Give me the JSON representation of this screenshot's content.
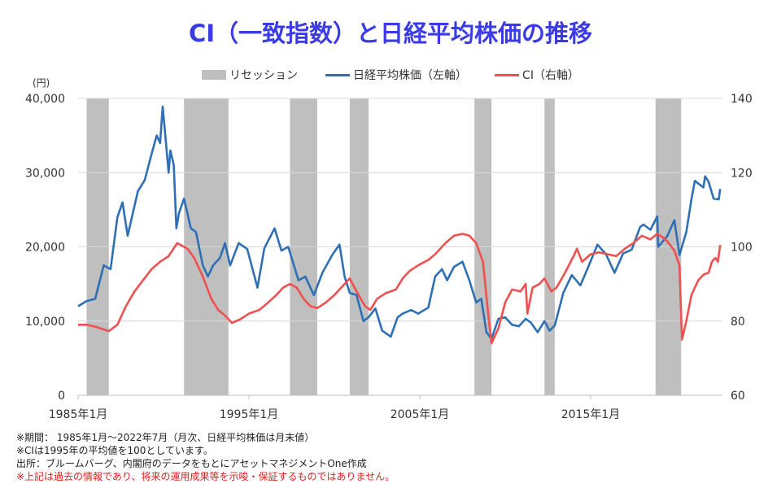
{
  "title": "CI（一致指数）と日経平均株価の推移",
  "colors": {
    "title": "#3a3ae6",
    "nikkei": "#2e6fb5",
    "ci": "#f05050",
    "recession": "#bfbfbf"
  },
  "notes": [
    "※期間： 1985年1月～2022年7月（月次、日経平均株価は月末値）",
    "※CIは1995年の平均値を100としています。",
    "出所：ブルームバーグ、内閣府のデータをもとにアセットマネジメントOne作成",
    "※上記は過去の情報であり、将来の運用成果等を示唆・保証するものではありません。"
  ],
  "chart_data": {
    "type": "line",
    "title": "CI（一致指数）と日経平均株価の推移",
    "legend": [
      "リセッション",
      "日経平均株価（左軸）",
      "CI（右軸）"
    ],
    "legend_position": "top",
    "y_left_label": "(円)",
    "y_left_lim": [
      0,
      40000
    ],
    "y_left_ticks": [
      "0",
      "10,000",
      "20,000",
      "30,000",
      "40,000"
    ],
    "y_right_lim": [
      60,
      140
    ],
    "y_right_ticks": [
      "60",
      "80",
      "100",
      "120",
      "140"
    ],
    "x_lim": [
      1985.0,
      2022.6
    ],
    "x_ticks": [
      {
        "v": 1985,
        "label": "1985年1月"
      },
      {
        "v": 1995,
        "label": "1995年1月"
      },
      {
        "v": 2005,
        "label": "2005年1月"
      },
      {
        "v": 2015,
        "label": "2015年1月"
      }
    ],
    "grid": true,
    "recessions": [
      [
        1985.5,
        1986.8
      ],
      [
        1991.2,
        1993.8
      ],
      [
        1997.4,
        1999.0
      ],
      [
        2000.9,
        2002.0
      ],
      [
        2008.2,
        2009.2
      ],
      [
        2012.3,
        2012.9
      ],
      [
        2018.8,
        2020.3
      ]
    ],
    "series": [
      {
        "name": "日経平均株価（左軸）",
        "axis": "left",
        "points": [
          [
            1985.0,
            12000
          ],
          [
            1985.5,
            12700
          ],
          [
            1986.0,
            13000
          ],
          [
            1986.5,
            17500
          ],
          [
            1986.9,
            17000
          ],
          [
            1987.3,
            24000
          ],
          [
            1987.6,
            26000
          ],
          [
            1987.9,
            21500
          ],
          [
            1988.2,
            24500
          ],
          [
            1988.5,
            27500
          ],
          [
            1988.9,
            29000
          ],
          [
            1989.3,
            32500
          ],
          [
            1989.6,
            35000
          ],
          [
            1989.8,
            34000
          ],
          [
            1989.95,
            38900
          ],
          [
            1990.3,
            30000
          ],
          [
            1990.4,
            33000
          ],
          [
            1990.6,
            31000
          ],
          [
            1990.75,
            22500
          ],
          [
            1990.9,
            24500
          ],
          [
            1991.2,
            26500
          ],
          [
            1991.6,
            22500
          ],
          [
            1991.9,
            22000
          ],
          [
            1992.3,
            17500
          ],
          [
            1992.6,
            16000
          ],
          [
            1992.9,
            17500
          ],
          [
            1993.3,
            18500
          ],
          [
            1993.6,
            20500
          ],
          [
            1993.9,
            17500
          ],
          [
            1994.4,
            20500
          ],
          [
            1994.9,
            19700
          ],
          [
            1995.5,
            14500
          ],
          [
            1995.9,
            19800
          ],
          [
            1996.5,
            22500
          ],
          [
            1996.9,
            19500
          ],
          [
            1997.3,
            20000
          ],
          [
            1997.9,
            15500
          ],
          [
            1998.3,
            16000
          ],
          [
            1998.8,
            13500
          ],
          [
            1999.3,
            16500
          ],
          [
            1999.9,
            19000
          ],
          [
            2000.3,
            20300
          ],
          [
            2000.6,
            16000
          ],
          [
            2000.9,
            13800
          ],
          [
            2001.3,
            13500
          ],
          [
            2001.7,
            10000
          ],
          [
            2002.0,
            10500
          ],
          [
            2002.4,
            11700
          ],
          [
            2002.8,
            8700
          ],
          [
            2003.3,
            7900
          ],
          [
            2003.7,
            10500
          ],
          [
            2004.0,
            11000
          ],
          [
            2004.5,
            11500
          ],
          [
            2004.9,
            11000
          ],
          [
            2005.5,
            11800
          ],
          [
            2005.9,
            16000
          ],
          [
            2006.3,
            17000
          ],
          [
            2006.6,
            15500
          ],
          [
            2007.0,
            17300
          ],
          [
            2007.5,
            18000
          ],
          [
            2007.9,
            15500
          ],
          [
            2008.3,
            12500
          ],
          [
            2008.6,
            13000
          ],
          [
            2008.9,
            8500
          ],
          [
            2009.2,
            7600
          ],
          [
            2009.6,
            10300
          ],
          [
            2010.0,
            10500
          ],
          [
            2010.4,
            9500
          ],
          [
            2010.8,
            9300
          ],
          [
            2011.2,
            10300
          ],
          [
            2011.5,
            9800
          ],
          [
            2011.9,
            8500
          ],
          [
            2012.3,
            10000
          ],
          [
            2012.6,
            8700
          ],
          [
            2012.9,
            9400
          ],
          [
            2013.4,
            13800
          ],
          [
            2013.9,
            16200
          ],
          [
            2014.4,
            14800
          ],
          [
            2014.9,
            17500
          ],
          [
            2015.4,
            20300
          ],
          [
            2015.9,
            19000
          ],
          [
            2016.4,
            16500
          ],
          [
            2016.9,
            19100
          ],
          [
            2017.4,
            19600
          ],
          [
            2017.9,
            22700
          ],
          [
            2018.1,
            23000
          ],
          [
            2018.5,
            22300
          ],
          [
            2018.9,
            24100
          ],
          [
            2018.95,
            20000
          ],
          [
            2019.5,
            21500
          ],
          [
            2019.9,
            23600
          ],
          [
            2020.2,
            18900
          ],
          [
            2020.6,
            22000
          ],
          [
            2020.9,
            26400
          ],
          [
            2021.1,
            28900
          ],
          [
            2021.6,
            28000
          ],
          [
            2021.7,
            29500
          ],
          [
            2021.9,
            28800
          ],
          [
            2022.2,
            26500
          ],
          [
            2022.5,
            26400
          ],
          [
            2022.58,
            27800
          ]
        ]
      },
      {
        "name": "CI（右軸）",
        "axis": "right",
        "points": [
          [
            1985.0,
            79
          ],
          [
            1985.5,
            79
          ],
          [
            1986.0,
            78.5
          ],
          [
            1986.8,
            77.3
          ],
          [
            1987.3,
            79
          ],
          [
            1987.8,
            84
          ],
          [
            1988.3,
            88
          ],
          [
            1988.8,
            91
          ],
          [
            1989.3,
            94
          ],
          [
            1989.8,
            96
          ],
          [
            1990.3,
            97.5
          ],
          [
            1990.8,
            101
          ],
          [
            1991.0,
            100.5
          ],
          [
            1991.4,
            99.5
          ],
          [
            1991.8,
            97
          ],
          [
            1992.3,
            92
          ],
          [
            1992.8,
            86
          ],
          [
            1993.2,
            83
          ],
          [
            1993.6,
            81.5
          ],
          [
            1994.0,
            79.5
          ],
          [
            1994.5,
            80.5
          ],
          [
            1995.0,
            82
          ],
          [
            1995.6,
            83
          ],
          [
            1996.0,
            84.5
          ],
          [
            1996.6,
            87
          ],
          [
            1997.0,
            89
          ],
          [
            1997.4,
            90
          ],
          [
            1997.8,
            89
          ],
          [
            1998.2,
            86
          ],
          [
            1998.6,
            84
          ],
          [
            1999.0,
            83.5
          ],
          [
            1999.5,
            85
          ],
          [
            2000.0,
            87
          ],
          [
            2000.5,
            89.5
          ],
          [
            2000.9,
            91.5
          ],
          [
            2001.3,
            88
          ],
          [
            2001.8,
            84
          ],
          [
            2002.1,
            83
          ],
          [
            2002.5,
            86
          ],
          [
            2003.0,
            87.5
          ],
          [
            2003.6,
            88.5
          ],
          [
            2004.0,
            91.5
          ],
          [
            2004.4,
            93.5
          ],
          [
            2004.9,
            95
          ],
          [
            2005.5,
            96.5
          ],
          [
            2005.9,
            98
          ],
          [
            2006.5,
            101
          ],
          [
            2007.0,
            103
          ],
          [
            2007.5,
            103.5
          ],
          [
            2007.9,
            103
          ],
          [
            2008.3,
            101
          ],
          [
            2008.7,
            96
          ],
          [
            2009.0,
            82
          ],
          [
            2009.2,
            74
          ],
          [
            2009.6,
            78
          ],
          [
            2010.0,
            85
          ],
          [
            2010.4,
            88.5
          ],
          [
            2010.9,
            88
          ],
          [
            2011.2,
            90
          ],
          [
            2011.3,
            82
          ],
          [
            2011.6,
            89
          ],
          [
            2012.0,
            90
          ],
          [
            2012.3,
            91.5
          ],
          [
            2012.7,
            88
          ],
          [
            2013.0,
            89
          ],
          [
            2013.5,
            93
          ],
          [
            2014.0,
            97.5
          ],
          [
            2014.2,
            99.5
          ],
          [
            2014.5,
            96
          ],
          [
            2015.0,
            98
          ],
          [
            2015.5,
            98.5
          ],
          [
            2016.0,
            98
          ],
          [
            2016.5,
            97.5
          ],
          [
            2017.0,
            99.5
          ],
          [
            2017.5,
            101
          ],
          [
            2018.0,
            103
          ],
          [
            2018.5,
            102
          ],
          [
            2018.9,
            103.5
          ],
          [
            2019.4,
            102
          ],
          [
            2019.9,
            99
          ],
          [
            2020.2,
            95
          ],
          [
            2020.35,
            75
          ],
          [
            2020.6,
            80
          ],
          [
            2020.9,
            87
          ],
          [
            2021.3,
            91
          ],
          [
            2021.6,
            92.5
          ],
          [
            2021.9,
            93
          ],
          [
            2022.1,
            96
          ],
          [
            2022.3,
            97
          ],
          [
            2022.45,
            96
          ],
          [
            2022.58,
            100.5
          ]
        ]
      }
    ]
  }
}
